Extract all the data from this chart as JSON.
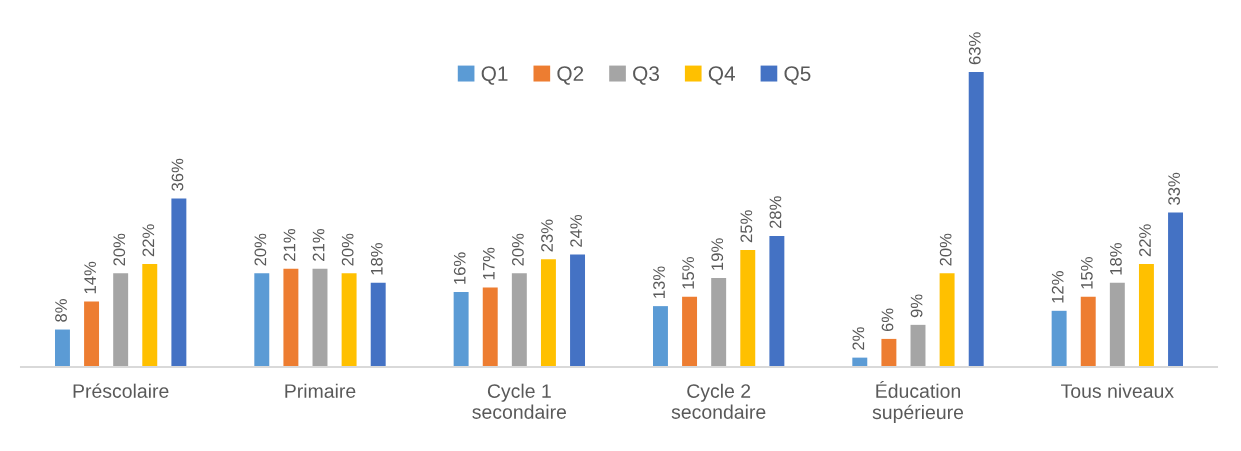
{
  "chart_data": {
    "type": "bar",
    "categories": [
      "Préscolaire",
      "Primaire",
      "Cycle 1\nsecondaire",
      "Cycle 2\nsecondaire",
      "Éducation\nsupérieure",
      "Tous niveaux"
    ],
    "series": [
      {
        "name": "Q1",
        "color": "#5b9bd5",
        "values": [
          8,
          20,
          16,
          13,
          2,
          12
        ],
        "value_labels": [
          "8%",
          "20%",
          "16%",
          "13%",
          "2%",
          "12%"
        ]
      },
      {
        "name": "Q2",
        "color": "#ed7d31",
        "values": [
          14,
          21,
          17,
          15,
          6,
          15
        ],
        "value_labels": [
          "14%",
          "21%",
          "17%",
          "15%",
          "6%",
          "15%"
        ]
      },
      {
        "name": "Q3",
        "color": "#a5a5a5",
        "values": [
          20,
          21,
          20,
          19,
          9,
          18
        ],
        "value_labels": [
          "20%",
          "21%",
          "20%",
          "19%",
          "9%",
          "18%"
        ]
      },
      {
        "name": "Q4",
        "color": "#ffc000",
        "values": [
          22,
          20,
          23,
          25,
          20,
          22
        ],
        "value_labels": [
          "22%",
          "20%",
          "23%",
          "25%",
          "20%",
          "22%"
        ]
      },
      {
        "name": "Q5",
        "color": "#4472c4",
        "values": [
          36,
          18,
          24,
          28,
          63,
          33
        ],
        "value_labels": [
          "36%",
          "18%",
          "24%",
          "28%",
          "63%",
          "33%"
        ]
      }
    ],
    "legend": "top",
    "grid": false,
    "tick_labels": "x"
  }
}
